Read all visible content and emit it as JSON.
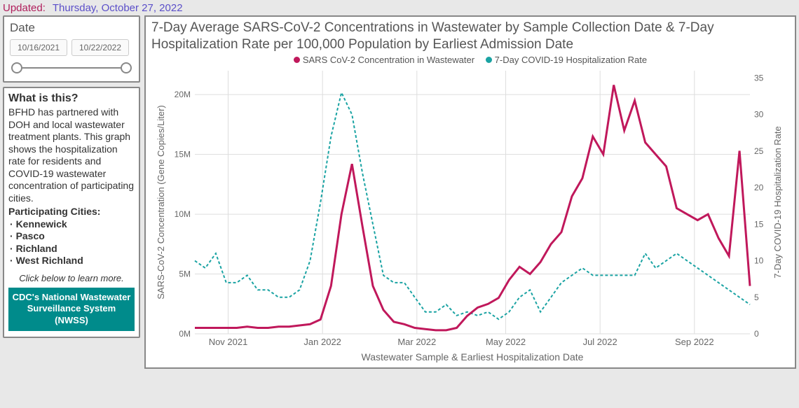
{
  "updated": {
    "label": "Updated:",
    "date": "Thursday, October 27, 2022"
  },
  "date_filter": {
    "title": "Date",
    "start": "10/16/2021",
    "end": "10/22/2022"
  },
  "info": {
    "title": "What is this?",
    "body": "BFHD has partnered with DOH and local wastewater treatment plants. This graph shows the hospitalization rate for residents and COVID-19 wastewater concentration of participating cities.",
    "cities_label": "Participating Cities:",
    "cities": [
      "Kennewick",
      "Pasco",
      "Richland",
      "West Richland"
    ],
    "learn_more": "Click below to learn more.",
    "cdc_button": "CDC's National Wastewater Surveillance System (NWSS)"
  },
  "chart": {
    "title": "7-Day Average SARS-CoV-2 Concentrations in Wastewater by Sample Collection Date & 7-Day Hospitalization Rate per 100,000 Population by Earliest Admission Date",
    "legend": {
      "series1": "SARS CoV-2 Concentration in Wastewater",
      "series2": "7-Day COVID-19 Hospitalization Rate"
    },
    "xlabel": "Wastewater Sample & Earliest Hospitalization Date",
    "ylabel_left": "SARS-CoV-2 Concentration (Gene Copies/Liter)",
    "ylabel_right": "7-Day COVID-19 Hospitalization Rate",
    "x_ticks": [
      "Nov 2021",
      "Jan 2022",
      "Mar 2022",
      "May 2022",
      "Jul 2022",
      "Sep 2022"
    ],
    "y_left": {
      "min": 0,
      "max": 22000000,
      "ticks": [
        0,
        5000000,
        10000000,
        15000000,
        20000000
      ],
      "tick_labels": [
        "0M",
        "5M",
        "10M",
        "15M",
        "20M"
      ]
    },
    "y_right": {
      "min": 0,
      "max": 36,
      "ticks": [
        0,
        5,
        10,
        15,
        20,
        25,
        30,
        35
      ]
    },
    "colors": {
      "series1": "#c0185b",
      "series2": "#1aa3a3",
      "grid": "#dddddd",
      "text": "#666666",
      "bg": "#ffffff"
    },
    "series1_style": {
      "width": 3,
      "dash": "none"
    },
    "series2_style": {
      "width": 2,
      "dash": "4 3"
    },
    "n_points": 54,
    "series1_values": [
      0.5,
      0.5,
      0.5,
      0.5,
      0.5,
      0.6,
      0.5,
      0.5,
      0.6,
      0.6,
      0.7,
      0.8,
      1.2,
      4.0,
      10.0,
      14.2,
      9.0,
      4.0,
      2.0,
      1.0,
      0.8,
      0.5,
      0.4,
      0.3,
      0.3,
      0.5,
      1.5,
      2.2,
      2.5,
      3.0,
      4.5,
      5.6,
      5.0,
      6.0,
      7.5,
      8.5,
      11.5,
      13.0,
      16.5,
      15.0,
      20.8,
      17.0,
      19.5,
      16.0,
      15.0,
      14.0,
      10.5,
      10.0,
      9.5,
      10.0,
      8.0,
      6.5,
      15.3,
      4.0
    ],
    "series2_values": [
      10,
      9,
      11,
      7,
      7,
      8,
      6,
      6,
      5,
      5,
      6,
      10,
      18,
      27,
      33,
      30,
      22,
      15,
      8,
      7,
      7,
      5,
      3,
      3,
      4,
      2.5,
      3,
      2.5,
      3,
      2,
      3,
      5,
      6,
      3,
      5,
      7,
      8,
      9,
      8,
      8,
      8,
      8,
      8,
      11,
      9,
      10,
      11,
      10,
      9,
      8,
      7,
      6,
      5,
      4
    ]
  }
}
